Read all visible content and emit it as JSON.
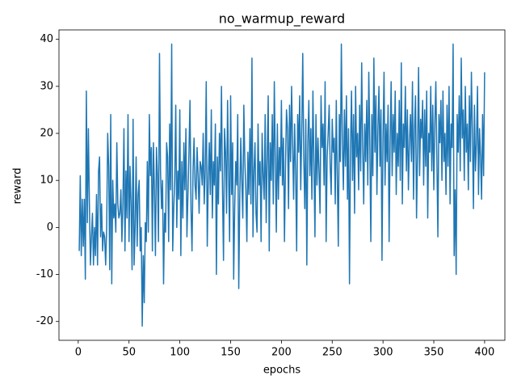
{
  "chart_data": {
    "type": "line",
    "title": "no_warmup_reward",
    "x_label": "epochs",
    "y_label": "reward",
    "x": [
      1,
      2,
      3,
      4,
      5,
      6,
      7,
      8,
      9,
      10,
      11,
      12,
      13,
      14,
      15,
      16,
      17,
      18,
      19,
      20,
      21,
      22,
      23,
      24,
      25,
      26,
      27,
      28,
      29,
      30,
      31,
      32,
      33,
      34,
      35,
      36,
      37,
      38,
      39,
      40,
      41,
      42,
      43,
      44,
      45,
      46,
      47,
      48,
      49,
      50,
      51,
      52,
      53,
      54,
      55,
      56,
      57,
      58,
      59,
      60,
      61,
      62,
      63,
      64,
      65,
      66,
      67,
      68,
      69,
      70,
      71,
      72,
      73,
      74,
      75,
      76,
      77,
      78,
      79,
      80,
      81,
      82,
      83,
      84,
      85,
      86,
      87,
      88,
      89,
      90,
      91,
      92,
      93,
      94,
      95,
      96,
      97,
      98,
      99,
      100,
      101,
      102,
      103,
      104,
      105,
      106,
      107,
      108,
      109,
      110,
      111,
      112,
      113,
      114,
      115,
      116,
      117,
      118,
      119,
      120,
      121,
      122,
      123,
      124,
      125,
      126,
      127,
      128,
      129,
      130,
      131,
      132,
      133,
      134,
      135,
      136,
      137,
      138,
      139,
      140,
      141,
      142,
      143,
      144,
      145,
      146,
      147,
      148,
      149,
      150,
      151,
      152,
      153,
      154,
      155,
      156,
      157,
      158,
      159,
      160,
      161,
      162,
      163,
      164,
      165,
      166,
      167,
      168,
      169,
      170,
      171,
      172,
      173,
      174,
      175,
      176,
      177,
      178,
      179,
      180,
      181,
      182,
      183,
      184,
      185,
      186,
      187,
      188,
      189,
      190,
      191,
      192,
      193,
      194,
      195,
      196,
      197,
      198,
      199,
      200,
      201,
      202,
      203,
      204,
      205,
      206,
      207,
      208,
      209,
      210,
      211,
      212,
      213,
      214,
      215,
      216,
      217,
      218,
      219,
      220,
      221,
      222,
      223,
      224,
      225,
      226,
      227,
      228,
      229,
      230,
      231,
      232,
      233,
      234,
      235,
      236,
      237,
      238,
      239,
      240,
      241,
      242,
      243,
      244,
      245,
      246,
      247,
      248,
      249,
      250,
      251,
      252,
      253,
      254,
      255,
      256,
      257,
      258,
      259,
      260,
      261,
      262,
      263,
      264,
      265,
      266,
      267,
      268,
      269,
      270,
      271,
      272,
      273,
      274,
      275,
      276,
      277,
      278,
      279,
      280,
      281,
      282,
      283,
      284,
      285,
      286,
      287,
      288,
      289,
      290,
      291,
      292,
      293,
      294,
      295,
      296,
      297,
      298,
      299,
      300,
      301,
      302,
      303,
      304,
      305,
      306,
      307,
      308,
      309,
      310,
      311,
      312,
      313,
      314,
      315,
      316,
      317,
      318,
      319,
      320,
      321,
      322,
      323,
      324,
      325,
      326,
      327,
      328,
      329,
      330,
      331,
      332,
      333,
      334,
      335,
      336,
      337,
      338,
      339,
      340,
      341,
      342,
      343,
      344,
      345,
      346,
      347,
      348,
      349,
      350,
      351,
      352,
      353,
      354,
      355,
      356,
      357,
      358,
      359,
      360,
      361,
      362,
      363,
      364,
      365,
      366,
      367,
      368,
      369,
      370,
      371,
      372,
      373,
      374,
      375,
      376,
      377,
      378,
      379,
      380,
      381,
      382,
      383,
      384,
      385,
      386,
      387,
      388,
      389,
      390,
      391,
      392,
      393,
      394,
      395,
      396,
      397,
      398,
      399,
      400
    ],
    "series": [
      {
        "color": "#1f77b4",
        "values": [
          -5,
          11,
          -6,
          6,
          -4,
          6,
          -11,
          29,
          1,
          21,
          5,
          -8,
          -2,
          3,
          -8,
          0,
          -6,
          7,
          -8,
          12,
          15,
          -2,
          5,
          -5,
          -1,
          -2,
          -8,
          0,
          20,
          13,
          -9,
          24,
          -12,
          10,
          2,
          5,
          -1,
          18,
          5,
          2,
          3,
          8,
          -3,
          5,
          21,
          -5,
          12,
          2,
          24,
          -3,
          13,
          5,
          -9,
          23,
          -8,
          0,
          15,
          -4,
          7,
          10,
          -5,
          0,
          -21,
          -6,
          -16,
          1,
          -3,
          14,
          -1,
          24,
          11,
          17,
          -5,
          18,
          8,
          -6,
          17,
          11,
          -3,
          37,
          12,
          4,
          10,
          -12,
          3,
          -1,
          18,
          15,
          -3,
          22,
          8,
          39,
          -5,
          4,
          10,
          26,
          0,
          12,
          6,
          25,
          -6,
          14,
          2,
          18,
          8,
          21,
          -2,
          7,
          16,
          27,
          4,
          -5,
          12,
          19,
          9,
          6,
          17,
          11,
          3,
          14,
          13,
          9,
          20,
          5,
          12,
          31,
          -4,
          10,
          18,
          7,
          25,
          2,
          14,
          9,
          22,
          -10,
          15,
          5,
          20,
          12,
          30,
          8,
          -7,
          21,
          16,
          3,
          27,
          12,
          -3,
          28,
          7,
          18,
          -11,
          4,
          14,
          9,
          24,
          -13,
          6,
          19,
          10,
          2,
          26,
          14,
          8,
          -3,
          16,
          7,
          21,
          5,
          36,
          -2,
          12,
          18,
          3,
          -1,
          22,
          9,
          14,
          -3,
          20,
          11,
          6,
          24,
          1,
          15,
          28,
          -5,
          18,
          10,
          24,
          5,
          31,
          14,
          -1,
          22,
          6,
          17,
          11,
          27,
          9,
          19,
          -3,
          13,
          25,
          21,
          4,
          26,
          14,
          30,
          18,
          6,
          22,
          12,
          -5,
          24,
          16,
          28,
          8,
          20,
          37,
          15,
          4,
          23,
          -8,
          18,
          27,
          11,
          21,
          6,
          29,
          14,
          -2,
          24,
          9,
          19,
          12,
          3,
          28,
          17,
          22,
          9,
          31,
          -3,
          15,
          20,
          26,
          13,
          7,
          23,
          16,
          19,
          5,
          27,
          11,
          -4,
          24,
          14,
          39,
          18,
          8,
          25,
          13,
          28,
          6,
          21,
          -12,
          17,
          29,
          10,
          24,
          3,
          30,
          15,
          20,
          8,
          26,
          12,
          35,
          17,
          5,
          22,
          14,
          27,
          9,
          33,
          18,
          -3,
          24,
          11,
          36,
          16,
          28,
          7,
          21,
          30,
          13,
          25,
          -7,
          19,
          33,
          9,
          22,
          14,
          26,
          -3,
          18,
          31,
          11,
          24,
          16,
          29,
          7,
          20,
          13,
          27,
          10,
          35,
          5,
          22,
          17,
          30,
          12,
          25,
          8,
          18,
          24,
          14,
          31,
          6,
          21,
          28,
          2,
          16,
          34,
          11,
          23,
          19,
          27,
          9,
          25,
          13,
          29,
          2,
          20,
          16,
          30,
          12,
          26,
          8,
          22,
          31,
          15,
          -2,
          24,
          18,
          27,
          10,
          29,
          14,
          20,
          7,
          26,
          13,
          30,
          5,
          22,
          17,
          39,
          -6,
          8,
          -10,
          24,
          16,
          28,
          12,
          36,
          19,
          25,
          10,
          30,
          16,
          22,
          8,
          28,
          14,
          33,
          20,
          4,
          26,
          12,
          18,
          30,
          7,
          21,
          15,
          6,
          24,
          11,
          33
        ]
      }
    ],
    "xlim": [
      -18.95,
      419.95
    ],
    "xticks": [
      0,
      50,
      100,
      150,
      200,
      250,
      300,
      350,
      400
    ],
    "ylim": [
      -24,
      42
    ],
    "yticks": [
      -20,
      -10,
      0,
      10,
      20,
      30,
      40
    ]
  }
}
